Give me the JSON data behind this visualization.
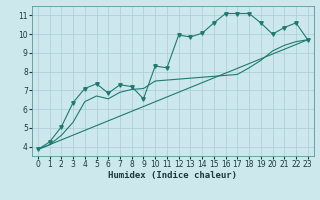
{
  "title": "",
  "xlabel": "Humidex (Indice chaleur)",
  "ylabel": "",
  "xlim": [
    -0.5,
    23.5
  ],
  "ylim": [
    3.5,
    11.5
  ],
  "xticks": [
    0,
    1,
    2,
    3,
    4,
    5,
    6,
    7,
    8,
    9,
    10,
    11,
    12,
    13,
    14,
    15,
    16,
    17,
    18,
    19,
    20,
    21,
    22,
    23
  ],
  "yticks": [
    4,
    5,
    6,
    7,
    8,
    9,
    10,
    11
  ],
  "bg_color": "#cce8ec",
  "grid_color": "#aaccd4",
  "line_color": "#1e7a70",
  "line1_x": [
    0,
    1,
    2,
    3,
    4,
    5,
    6,
    7,
    8,
    9,
    10,
    11,
    12,
    13,
    14,
    15,
    16,
    17,
    18,
    19,
    20,
    21,
    22,
    23
  ],
  "line1_y": [
    3.85,
    4.25,
    5.05,
    6.35,
    7.1,
    7.35,
    6.85,
    7.3,
    7.2,
    6.55,
    8.3,
    8.2,
    9.95,
    9.85,
    10.05,
    10.6,
    11.1,
    11.1,
    11.1,
    10.6,
    10.0,
    10.35,
    10.6,
    9.7
  ],
  "line2_x": [
    0,
    1,
    2,
    3,
    4,
    5,
    6,
    7,
    8,
    9,
    10,
    11,
    12,
    13,
    14,
    15,
    16,
    17,
    18,
    19,
    20,
    21,
    22,
    23
  ],
  "line2_y": [
    3.85,
    4.1,
    4.6,
    5.3,
    6.4,
    6.7,
    6.55,
    6.9,
    7.05,
    7.1,
    7.5,
    7.55,
    7.6,
    7.65,
    7.7,
    7.75,
    7.8,
    7.85,
    8.2,
    8.6,
    9.1,
    9.4,
    9.6,
    9.7
  ],
  "line3_x": [
    0,
    23
  ],
  "line3_y": [
    3.85,
    9.7
  ],
  "tick_fontsize": 5.5,
  "xlabel_fontsize": 6.5
}
